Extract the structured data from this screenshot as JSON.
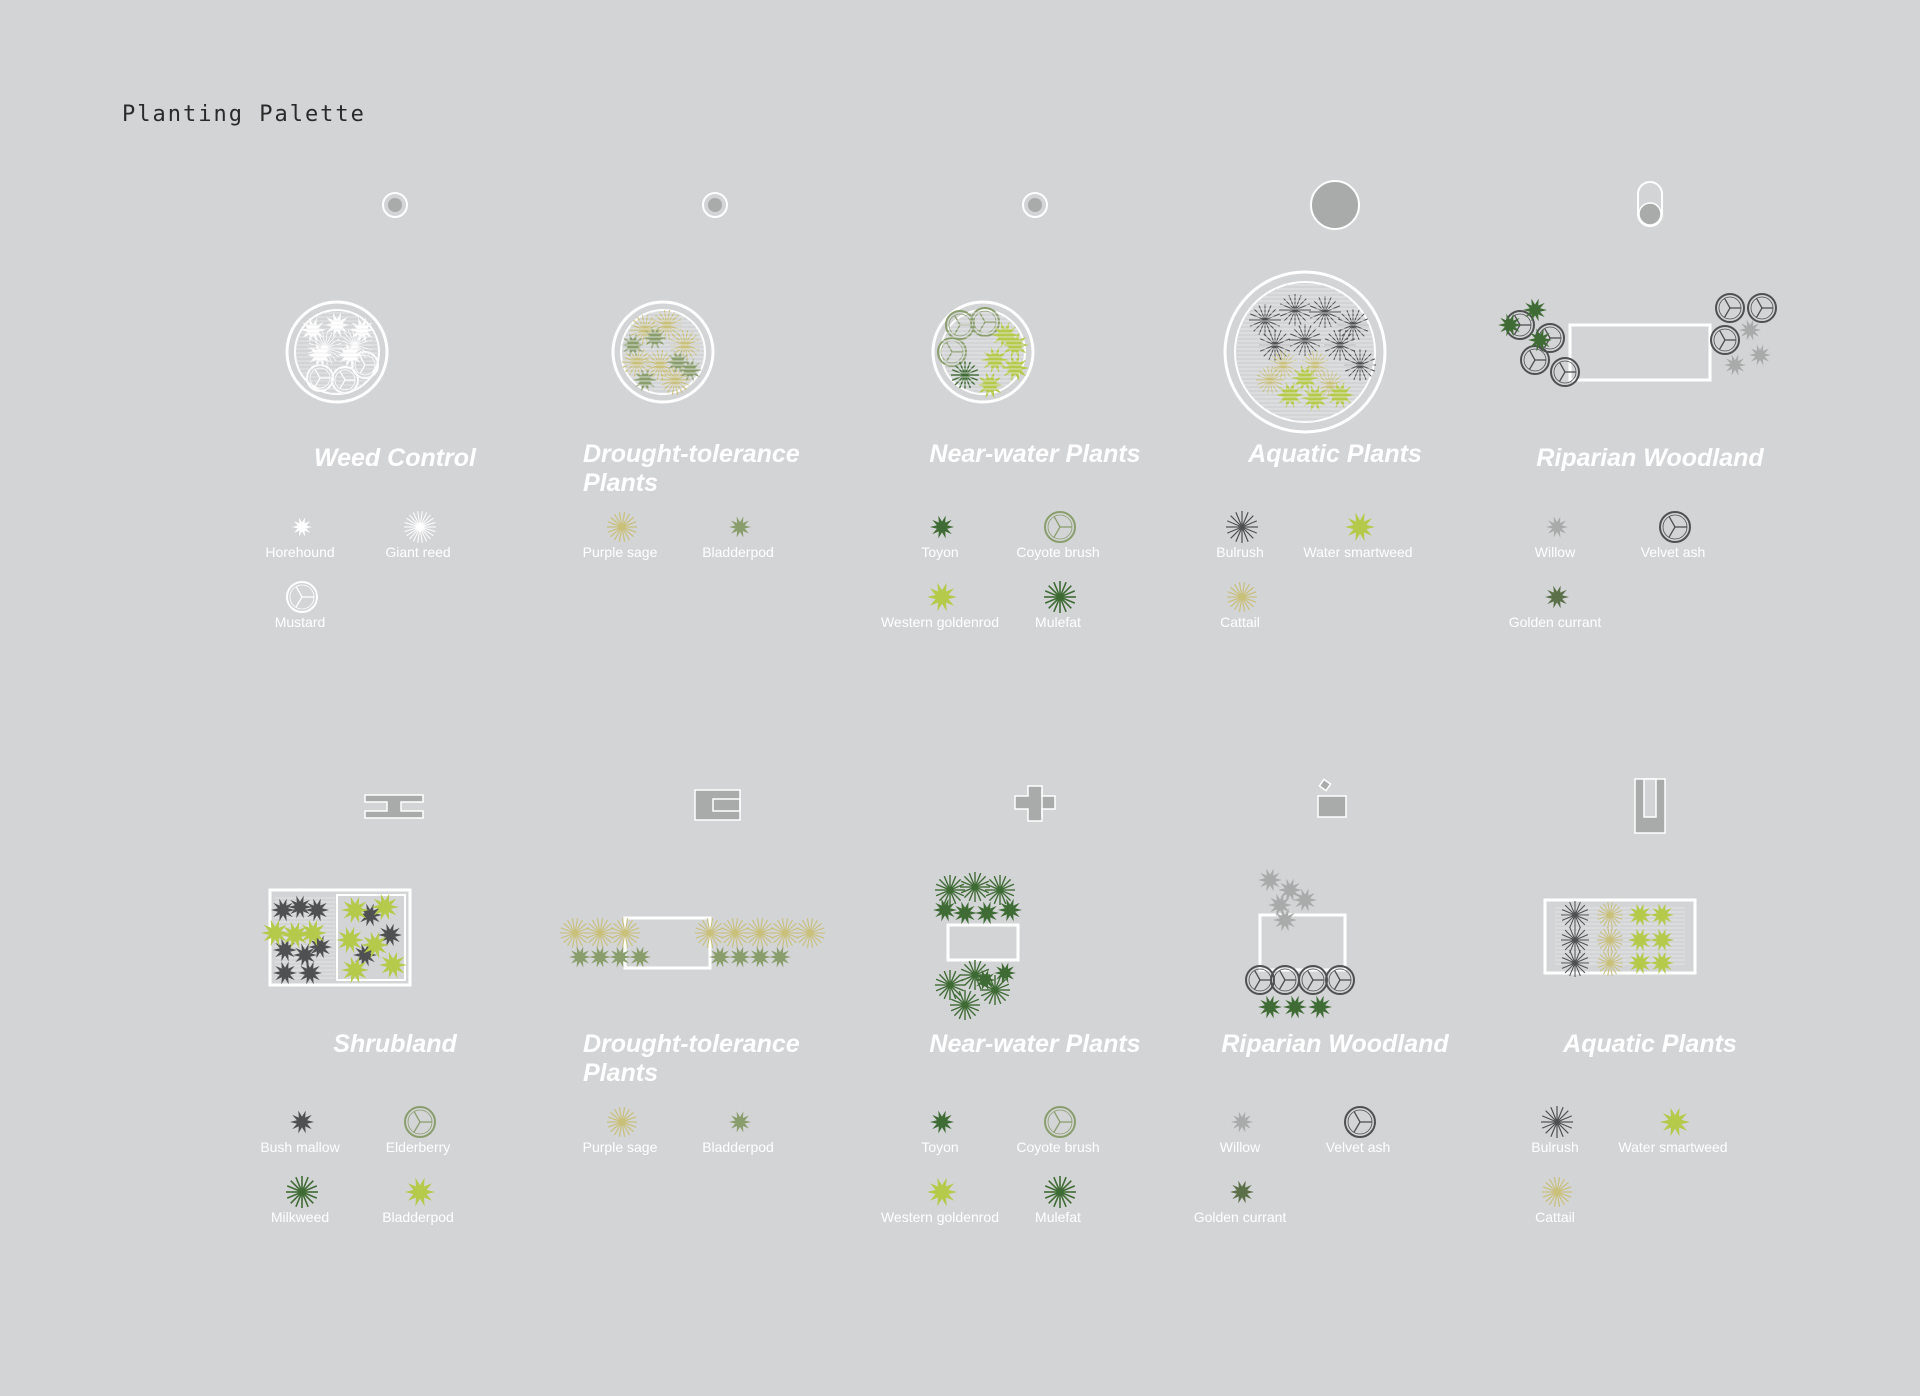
{
  "title": "Planting Palette",
  "colors": {
    "background": "#d3d4d6",
    "white": "#ffffff",
    "dark_green": "#3f6b34",
    "olive": "#8a9e6d",
    "lime": "#b5c94a",
    "tan": "#c9c07a",
    "gray": "#a9abab",
    "charcoal": "#4f5052"
  },
  "panels": [
    {
      "id": "weed-control",
      "title": "Weed Control",
      "species": [
        {
          "label": "Horehound",
          "icon": "white-star-small"
        },
        {
          "label": "Giant reed",
          "icon": "white-starburst"
        },
        {
          "label": "Mustard",
          "icon": "white-tree-circle"
        }
      ]
    },
    {
      "id": "drought-tolerance-1",
      "title": "Drought-tolerance\nPlants",
      "species": [
        {
          "label": "Purple sage",
          "icon": "tan-starburst"
        },
        {
          "label": "Bladderpod",
          "icon": "olive-star"
        }
      ]
    },
    {
      "id": "near-water-1",
      "title": "Near-water Plants",
      "species": [
        {
          "label": "Toyon",
          "icon": "dark-green-star"
        },
        {
          "label": "Coyote brush",
          "icon": "olive-tree-circle"
        },
        {
          "label": "Western goldenrod",
          "icon": "lime-star"
        },
        {
          "label": "Mulefat",
          "icon": "dark-green-starburst"
        }
      ]
    },
    {
      "id": "aquatic-1",
      "title": "Aquatic Plants",
      "species": [
        {
          "label": "Bulrush",
          "icon": "charcoal-starburst"
        },
        {
          "label": "Water smartweed",
          "icon": "lime-star"
        },
        {
          "label": "Cattail",
          "icon": "tan-starburst"
        }
      ]
    },
    {
      "id": "riparian-1",
      "title": "Riparian Woodland",
      "species": [
        {
          "label": "Willow",
          "icon": "gray-star"
        },
        {
          "label": "Velvet ash",
          "icon": "charcoal-tree-circle"
        },
        {
          "label": "Golden currant",
          "icon": "olive-dark-star"
        }
      ]
    },
    {
      "id": "shrubland",
      "title": "Shrubland",
      "species": [
        {
          "label": "Bush mallow",
          "icon": "charcoal-star"
        },
        {
          "label": "Elderberry",
          "icon": "olive-tree-circle"
        },
        {
          "label": "Milkweed",
          "icon": "dark-green-starburst"
        },
        {
          "label": "Bladderpod",
          "icon": "lime-star"
        }
      ]
    },
    {
      "id": "drought-tolerance-2",
      "title": "Drought-tolerance\nPlants",
      "species": [
        {
          "label": "Purple sage",
          "icon": "tan-starburst"
        },
        {
          "label": "Bladderpod",
          "icon": "olive-star"
        }
      ]
    },
    {
      "id": "near-water-2",
      "title": "Near-water Plants",
      "species": [
        {
          "label": "Toyon",
          "icon": "dark-green-star"
        },
        {
          "label": "Coyote brush",
          "icon": "olive-tree-circle"
        },
        {
          "label": "Western goldenrod",
          "icon": "lime-star"
        },
        {
          "label": "Mulefat",
          "icon": "dark-green-starburst"
        }
      ]
    },
    {
      "id": "riparian-2",
      "title": "Riparian Woodland",
      "species": [
        {
          "label": "Willow",
          "icon": "gray-star"
        },
        {
          "label": "Velvet ash",
          "icon": "charcoal-tree-circle"
        },
        {
          "label": "Golden currant",
          "icon": "olive-dark-star"
        }
      ]
    },
    {
      "id": "aquatic-2",
      "title": "Aquatic Plants",
      "species": [
        {
          "label": "Bulrush",
          "icon": "charcoal-starburst"
        },
        {
          "label": "Water smartweed",
          "icon": "lime-star"
        },
        {
          "label": "Cattail",
          "icon": "tan-starburst"
        }
      ]
    }
  ]
}
